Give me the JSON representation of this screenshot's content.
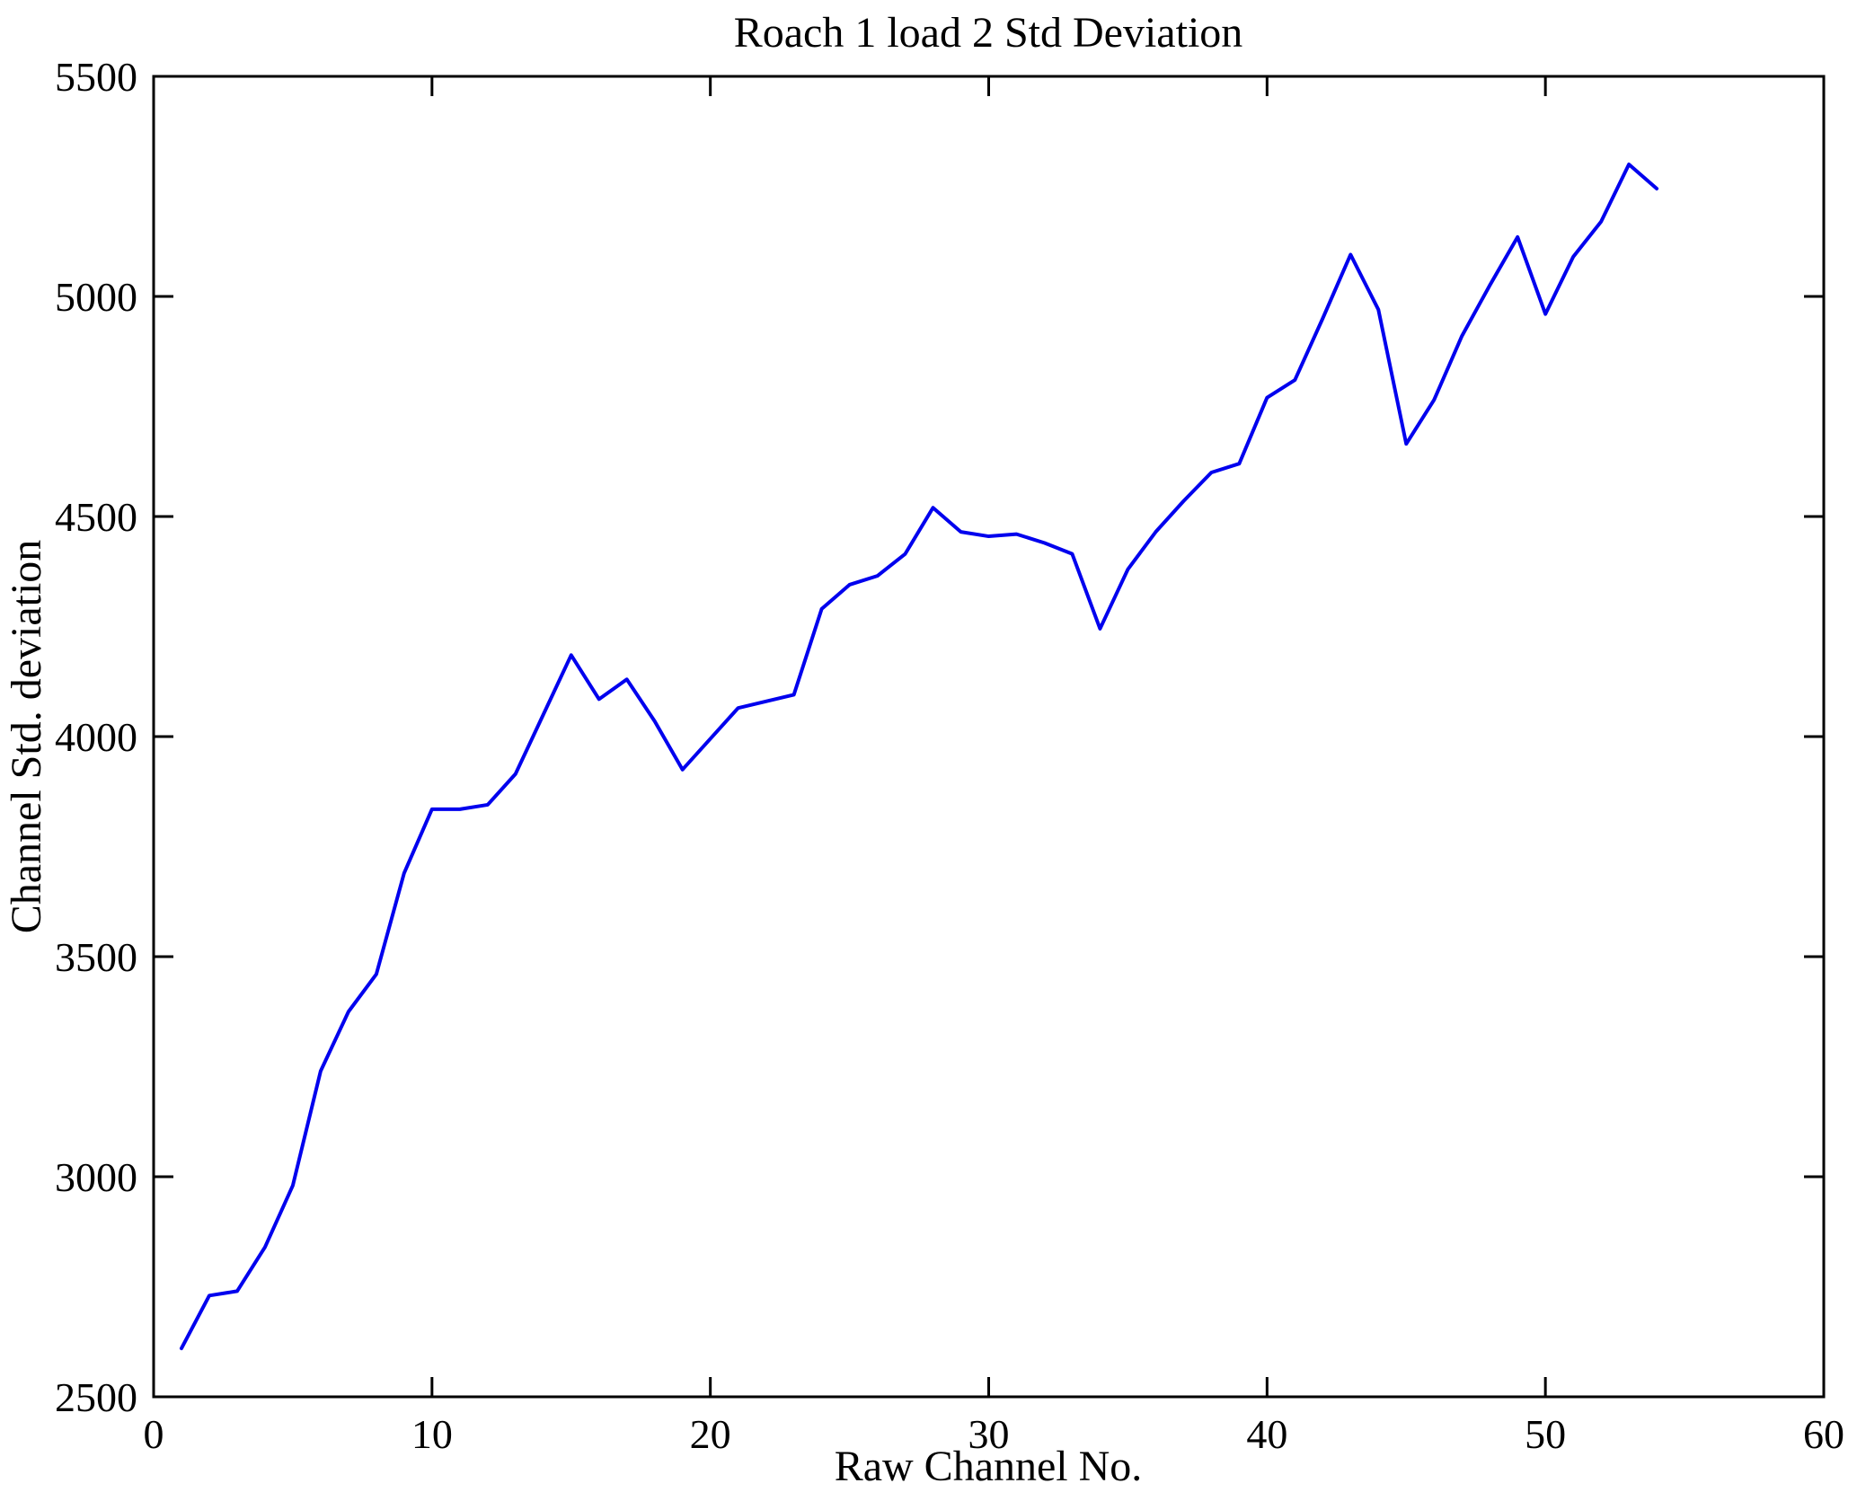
{
  "chart_data": {
    "type": "line",
    "title": "Roach 1 load 2 Std Deviation",
    "xlabel": "Raw Channel No.",
    "ylabel": "Channel Std. deviation",
    "xlim": [
      0,
      60
    ],
    "ylim": [
      2500,
      5500
    ],
    "xticks": [
      0,
      10,
      20,
      30,
      40,
      50,
      60
    ],
    "yticks": [
      2500,
      3000,
      3500,
      4000,
      4500,
      5000,
      5500
    ],
    "grid": false,
    "legend": "none",
    "line_color": "#0000EE",
    "axis_color": "#000000",
    "background_color": "#ffffff",
    "series_name": "Channel standard deviation",
    "x": [
      1,
      2,
      3,
      4,
      5,
      6,
      7,
      8,
      9,
      10,
      11,
      12,
      13,
      14,
      15,
      16,
      17,
      18,
      19,
      20,
      21,
      22,
      23,
      24,
      25,
      26,
      27,
      28,
      29,
      30,
      31,
      32,
      33,
      34,
      35,
      36,
      37,
      38,
      39,
      40,
      41,
      42,
      43,
      44,
      45,
      46,
      47,
      48,
      49,
      50,
      51,
      52,
      53,
      54
    ],
    "values": [
      2610,
      2730,
      2740,
      2840,
      2980,
      3240,
      3375,
      3460,
      3690,
      3835,
      3835,
      3845,
      3915,
      4050,
      4185,
      4085,
      4130,
      4035,
      3925,
      3995,
      4065,
      4080,
      4095,
      4290,
      4345,
      4365,
      4415,
      4520,
      4465,
      4455,
      4460,
      4440,
      4415,
      4245,
      4380,
      4465,
      4535,
      4600,
      4620,
      4770,
      4810,
      4950,
      5095,
      4970,
      4665,
      4765,
      4910,
      5025,
      5135,
      4960,
      5090,
      5170,
      5300,
      5245
    ]
  }
}
